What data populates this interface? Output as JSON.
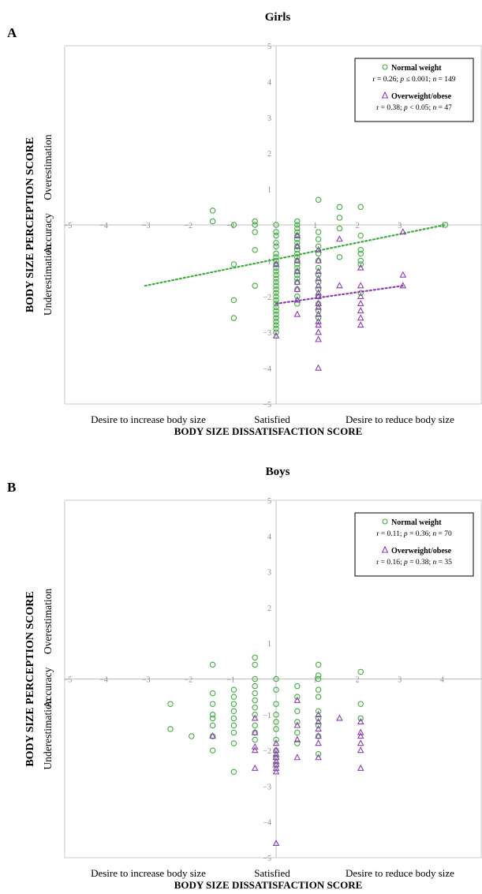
{
  "colors": {
    "normal": "#3fae3f",
    "overweight": "#8b3fb0",
    "axis": "#bfbfbf",
    "tick": "#8a8a8a"
  },
  "chart_data": [
    {
      "type": "scatter",
      "panel": "A",
      "title": "Girls",
      "xlabel": "BODY SIZE DISSATISFACTION SCORE",
      "ylabel": "BODY SIZE PERCEPTION SCORE",
      "x_category_labels": [
        "Desire to increase body size",
        "Satisfied",
        "Desire to reduce body size"
      ],
      "y_side_labels": [
        "Underestimation",
        "Accuracy",
        "Overestimation"
      ],
      "xlim": [
        -5,
        5
      ],
      "ylim": [
        -5,
        5
      ],
      "xticks": [
        -5,
        -4,
        -3,
        -2,
        -1,
        1,
        2,
        3,
        4
      ],
      "yticks": [
        -5,
        -4,
        -3,
        -2,
        -1,
        1,
        2,
        3,
        4,
        5
      ],
      "legend_position": "top-right",
      "series": [
        {
          "name": "Normal weight",
          "stats": [
            "r = 0.26; ",
            "p",
            " ≤ 0.001; ",
            "n",
            " = 149"
          ],
          "marker": "circle",
          "trend": [
            [
              -3.1,
              -1.7
            ],
            [
              4.0,
              0.0
            ]
          ],
          "points": [
            [
              -1.5,
              0.4
            ],
            [
              -1.5,
              0.1
            ],
            [
              -1.0,
              0.0
            ],
            [
              -1.0,
              -1.1
            ],
            [
              -1.0,
              -2.1
            ],
            [
              -1.0,
              -2.6
            ],
            [
              -0.5,
              0.1
            ],
            [
              -0.5,
              0.0
            ],
            [
              -0.5,
              -0.7
            ],
            [
              -0.5,
              -1.7
            ],
            [
              -0.5,
              -0.2
            ],
            [
              0,
              0
            ],
            [
              0,
              -0.2
            ],
            [
              0,
              -0.3
            ],
            [
              0,
              -0.5
            ],
            [
              0,
              -0.6
            ],
            [
              0,
              -0.8
            ],
            [
              0,
              -0.9
            ],
            [
              0,
              -1.0
            ],
            [
              0,
              -1.1
            ],
            [
              0,
              -1.2
            ],
            [
              0,
              -1.3
            ],
            [
              0,
              -1.4
            ],
            [
              0,
              -1.5
            ],
            [
              0,
              -1.6
            ],
            [
              0,
              -1.7
            ],
            [
              0,
              -1.8
            ],
            [
              0,
              -1.9
            ],
            [
              0,
              -2.0
            ],
            [
              0,
              -2.1
            ],
            [
              0,
              -2.2
            ],
            [
              0,
              -2.3
            ],
            [
              0,
              -2.4
            ],
            [
              0,
              -2.5
            ],
            [
              0,
              -2.6
            ],
            [
              0,
              -2.7
            ],
            [
              0,
              -2.8
            ],
            [
              0,
              -2.9
            ],
            [
              0,
              -3.0
            ],
            [
              0.5,
              0.1
            ],
            [
              0.5,
              0.0
            ],
            [
              0.5,
              -0.1
            ],
            [
              0.5,
              -0.2
            ],
            [
              0.5,
              -0.3
            ],
            [
              0.5,
              -0.4
            ],
            [
              0.5,
              -0.5
            ],
            [
              0.5,
              -0.6
            ],
            [
              0.5,
              -0.7
            ],
            [
              0.5,
              -0.8
            ],
            [
              0.5,
              -0.9
            ],
            [
              0.5,
              -1.0
            ],
            [
              0.5,
              -1.1
            ],
            [
              0.5,
              -1.2
            ],
            [
              0.5,
              -1.3
            ],
            [
              0.5,
              -1.4
            ],
            [
              0.5,
              -1.5
            ],
            [
              0.5,
              -1.6
            ],
            [
              0.5,
              -1.8
            ],
            [
              0.5,
              -2.0
            ],
            [
              0.5,
              -2.2
            ],
            [
              1.0,
              0.7
            ],
            [
              1.0,
              -0.2
            ],
            [
              1.0,
              -0.4
            ],
            [
              1.0,
              -0.6
            ],
            [
              1.0,
              -0.8
            ],
            [
              1.0,
              -1.0
            ],
            [
              1.0,
              -1.2
            ],
            [
              1.0,
              -1.4
            ],
            [
              1.0,
              -1.6
            ],
            [
              1.0,
              -1.8
            ],
            [
              1.0,
              -2.0
            ],
            [
              1.0,
              -2.2
            ],
            [
              1.0,
              -2.4
            ],
            [
              1.0,
              -2.6
            ],
            [
              1.5,
              0.5
            ],
            [
              1.5,
              0.2
            ],
            [
              1.5,
              -0.1
            ],
            [
              1.5,
              -0.9
            ],
            [
              2.0,
              0.5
            ],
            [
              2.0,
              -0.3
            ],
            [
              2.0,
              -0.7
            ],
            [
              2.0,
              -0.8
            ],
            [
              2.0,
              -1.0
            ],
            [
              2.0,
              -1.1
            ],
            [
              2.0,
              -1.9
            ],
            [
              4.0,
              0.0
            ]
          ]
        },
        {
          "name": "Overweight/obese",
          "stats": [
            "r = 0.38; ",
            "p",
            " < 0.05; ",
            "n",
            " = 47"
          ],
          "marker": "triangle",
          "trend": [
            [
              0.0,
              -2.2
            ],
            [
              3.0,
              -1.7
            ]
          ],
          "points": [
            [
              0,
              -1.1
            ],
            [
              0,
              -3.1
            ],
            [
              0.5,
              -0.3
            ],
            [
              0.5,
              -0.6
            ],
            [
              0.5,
              -1.0
            ],
            [
              0.5,
              -1.3
            ],
            [
              0.5,
              -1.6
            ],
            [
              0.5,
              -1.8
            ],
            [
              0.5,
              -2.1
            ],
            [
              0.5,
              -2.5
            ],
            [
              1.0,
              -0.7
            ],
            [
              1.0,
              -1.0
            ],
            [
              1.0,
              -1.3
            ],
            [
              1.0,
              -1.5
            ],
            [
              1.0,
              -1.7
            ],
            [
              1.0,
              -1.9
            ],
            [
              1.0,
              -2.0
            ],
            [
              1.0,
              -2.2
            ],
            [
              1.0,
              -2.3
            ],
            [
              1.0,
              -2.5
            ],
            [
              1.0,
              -2.7
            ],
            [
              1.0,
              -2.8
            ],
            [
              1.0,
              -3.0
            ],
            [
              1.0,
              -3.2
            ],
            [
              1.0,
              -4.0
            ],
            [
              1.5,
              -0.4
            ],
            [
              1.5,
              -1.7
            ],
            [
              2.0,
              -1.2
            ],
            [
              2.0,
              -1.7
            ],
            [
              2.0,
              -2.0
            ],
            [
              2.0,
              -2.2
            ],
            [
              2.0,
              -2.4
            ],
            [
              2.0,
              -2.6
            ],
            [
              2.0,
              -2.8
            ],
            [
              3.0,
              -0.2
            ],
            [
              3.0,
              -1.4
            ],
            [
              3.0,
              -1.7
            ]
          ]
        }
      ]
    },
    {
      "type": "scatter",
      "panel": "B",
      "title": "Boys",
      "xlabel": "BODY SIZE DISSATISFACTION SCORE",
      "ylabel": "BODY SIZE PERCEPTION SCORE",
      "x_category_labels": [
        "Desire to increase body size",
        "Satisfied",
        "Desire to reduce body size"
      ],
      "y_side_labels": [
        "Underestimation",
        "Accuracy",
        "Overestimation"
      ],
      "xlim": [
        -5,
        5
      ],
      "ylim": [
        -5,
        5
      ],
      "xticks": [
        -5,
        -4,
        -3,
        -2,
        -1,
        1,
        2,
        3,
        4
      ],
      "yticks": [
        -5,
        -4,
        -3,
        -2,
        -1,
        1,
        2,
        3,
        4,
        5
      ],
      "legend_position": "top-right",
      "series": [
        {
          "name": "Normal weight",
          "stats": [
            "r = 0.11; ",
            "p",
            " = 0.36; ",
            "n",
            " = 70"
          ],
          "marker": "circle",
          "points": [
            [
              -2.5,
              -0.7
            ],
            [
              -2.5,
              -1.4
            ],
            [
              -2.0,
              -1.6
            ],
            [
              -1.5,
              0.4
            ],
            [
              -1.5,
              -0.4
            ],
            [
              -1.5,
              -0.7
            ],
            [
              -1.5,
              -1.0
            ],
            [
              -1.5,
              -1.1
            ],
            [
              -1.5,
              -1.3
            ],
            [
              -1.5,
              -1.6
            ],
            [
              -1.5,
              -2.0
            ],
            [
              -1.0,
              -0.3
            ],
            [
              -1.0,
              -0.5
            ],
            [
              -1.0,
              -0.7
            ],
            [
              -1.0,
              -0.9
            ],
            [
              -1.0,
              -1.1
            ],
            [
              -1.0,
              -1.3
            ],
            [
              -1.0,
              -1.5
            ],
            [
              -1.0,
              -1.8
            ],
            [
              -1.0,
              -2.6
            ],
            [
              -0.5,
              0.6
            ],
            [
              -0.5,
              0.4
            ],
            [
              -0.5,
              0.0
            ],
            [
              -0.5,
              -0.2
            ],
            [
              -0.5,
              -0.4
            ],
            [
              -0.5,
              -0.6
            ],
            [
              -0.5,
              -0.8
            ],
            [
              -0.5,
              -1.0
            ],
            [
              -0.5,
              -1.3
            ],
            [
              -0.5,
              -1.5
            ],
            [
              -0.5,
              -1.7
            ],
            [
              0,
              0
            ],
            [
              0,
              -0.3
            ],
            [
              0,
              -0.7
            ],
            [
              0,
              -1.0
            ],
            [
              0,
              -1.2
            ],
            [
              0,
              -1.4
            ],
            [
              0,
              -1.7
            ],
            [
              0,
              -2.0
            ],
            [
              0,
              -2.2
            ],
            [
              0,
              -2.4
            ],
            [
              0.5,
              -0.2
            ],
            [
              0.5,
              -0.5
            ],
            [
              0.5,
              -0.9
            ],
            [
              0.5,
              -1.2
            ],
            [
              0.5,
              -1.5
            ],
            [
              0.5,
              -1.8
            ],
            [
              1.0,
              0.4
            ],
            [
              1.0,
              0.1
            ],
            [
              1.0,
              0.0
            ],
            [
              1.0,
              -0.3
            ],
            [
              1.0,
              -0.5
            ],
            [
              1.0,
              -0.9
            ],
            [
              1.0,
              -1.1
            ],
            [
              1.0,
              -1.3
            ],
            [
              1.0,
              -1.6
            ],
            [
              1.0,
              -2.1
            ],
            [
              2.0,
              0.2
            ],
            [
              2.0,
              -0.7
            ],
            [
              2.0,
              -1.1
            ]
          ]
        },
        {
          "name": "Overweight/obese",
          "stats": [
            "r = 0.16; ",
            "p",
            " = 0.38; ",
            "n",
            " = 35"
          ],
          "marker": "triangle",
          "points": [
            [
              -1.5,
              -1.6
            ],
            [
              -0.5,
              -1.1
            ],
            [
              -0.5,
              -1.5
            ],
            [
              -0.5,
              -1.9
            ],
            [
              -0.5,
              -2.0
            ],
            [
              -0.5,
              -2.5
            ],
            [
              0,
              -1.8
            ],
            [
              0,
              -2.0
            ],
            [
              0,
              -2.1
            ],
            [
              0,
              -2.2
            ],
            [
              0,
              -2.3
            ],
            [
              0,
              -2.4
            ],
            [
              0,
              -2.5
            ],
            [
              0,
              -2.6
            ],
            [
              0,
              -4.6
            ],
            [
              0.5,
              -0.6
            ],
            [
              0.5,
              -1.3
            ],
            [
              0.5,
              -1.7
            ],
            [
              0.5,
              -2.2
            ],
            [
              1.0,
              -1.0
            ],
            [
              1.0,
              -1.2
            ],
            [
              1.0,
              -1.4
            ],
            [
              1.0,
              -1.6
            ],
            [
              1.0,
              -1.8
            ],
            [
              1.0,
              -2.2
            ],
            [
              1.5,
              -1.1
            ],
            [
              2.0,
              -1.2
            ],
            [
              2.0,
              -1.5
            ],
            [
              2.0,
              -1.6
            ],
            [
              2.0,
              -1.8
            ],
            [
              2.0,
              -2.0
            ],
            [
              2.0,
              -2.5
            ]
          ]
        }
      ]
    }
  ]
}
